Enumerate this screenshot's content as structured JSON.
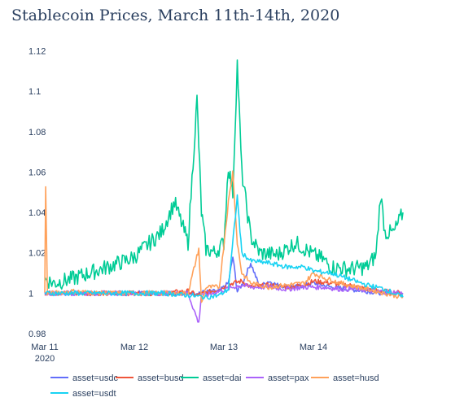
{
  "chart_data": {
    "type": "line",
    "title": "Stablecoin Prices, March 11th-14th, 2020",
    "xlabel": "",
    "ylabel": "",
    "x_ticks": [
      "Mar 11",
      "Mar 12",
      "Mar 13",
      "Mar 14"
    ],
    "x_sub_tick": "2020",
    "y_ticks": [
      "0.98",
      "1",
      "1.02",
      "1.04",
      "1.06",
      "1.08",
      "1.1",
      "1.12"
    ],
    "xlim": [
      0,
      4
    ],
    "ylim": [
      0.978,
      1.123
    ],
    "grid": false,
    "legend_position": "bottom",
    "x_unit": "days since Mar 11 2020",
    "series": [
      {
        "name": "asset=usdc",
        "color": "#636efa",
        "x": [
          0,
          0.3,
          0.6,
          1.0,
          1.3,
          1.6,
          1.95,
          2.05,
          2.1,
          2.15,
          2.2,
          2.3,
          2.4,
          2.5,
          2.6,
          2.8,
          3.0,
          3.2,
          3.4,
          3.6,
          3.8,
          4.0
        ],
        "y": [
          1.0,
          1.0,
          1.0,
          1.0,
          1.0,
          1.0,
          1.001,
          1.005,
          1.018,
          1.001,
          1.004,
          1.015,
          1.003,
          1.006,
          1.004,
          1.003,
          1.005,
          1.003,
          1.002,
          1.001,
          1.0,
          1.0
        ]
      },
      {
        "name": "asset=busd",
        "color": "#ef553b",
        "x": [
          0,
          0.3,
          0.6,
          1.0,
          1.3,
          1.6,
          1.7,
          1.95,
          2.1,
          2.2,
          2.3,
          2.5,
          2.7,
          2.9,
          3.0,
          3.2,
          3.4,
          3.6,
          3.8,
          4.0
        ],
        "y": [
          1.0,
          1.0,
          1.0,
          1.0,
          1.0,
          1.001,
          0.999,
          1.002,
          1.005,
          1.006,
          1.003,
          1.004,
          1.003,
          1.004,
          1.006,
          1.005,
          1.004,
          1.002,
          1.001,
          1.0
        ]
      },
      {
        "name": "asset=dai",
        "color": "#00cc96",
        "x": [
          0,
          0.1,
          0.3,
          0.5,
          0.7,
          0.9,
          1.0,
          1.1,
          1.3,
          1.45,
          1.6,
          1.7,
          1.75,
          1.8,
          1.9,
          2.0,
          2.05,
          2.1,
          2.15,
          2.2,
          2.3,
          2.4,
          2.6,
          2.8,
          3.0,
          3.1,
          3.2,
          3.4,
          3.6,
          3.7,
          3.75,
          3.8,
          3.9,
          4.0
        ],
        "y": [
          1.007,
          1.005,
          1.007,
          1.01,
          1.013,
          1.016,
          1.018,
          1.022,
          1.03,
          1.045,
          1.025,
          1.096,
          1.04,
          1.022,
          1.02,
          1.025,
          1.063,
          1.05,
          1.114,
          1.06,
          1.028,
          1.02,
          1.019,
          1.025,
          1.019,
          1.017,
          1.013,
          1.012,
          1.013,
          1.019,
          1.049,
          1.03,
          1.03,
          1.04
        ]
      },
      {
        "name": "asset=pax",
        "color": "#ab63fa",
        "x": [
          0,
          0.3,
          0.6,
          1.0,
          1.3,
          1.6,
          1.72,
          1.75,
          1.8,
          1.95,
          2.1,
          2.2,
          2.3,
          2.5,
          2.7,
          2.9,
          3.1,
          3.3,
          3.5,
          3.7,
          4.0
        ],
        "y": [
          1.0,
          1.0,
          1.0,
          1.0,
          1.0,
          1.0,
          0.985,
          1.0,
          0.999,
          1.001,
          1.003,
          1.004,
          1.003,
          1.003,
          1.002,
          1.003,
          1.003,
          1.002,
          1.002,
          1.001,
          1.0
        ]
      },
      {
        "name": "asset=husd",
        "color": "#ffa15a",
        "x": [
          0,
          0.01,
          0.03,
          0.1,
          0.3,
          0.6,
          1.0,
          1.3,
          1.6,
          1.72,
          1.75,
          1.8,
          1.95,
          2.05,
          2.1,
          2.15,
          2.2,
          2.3,
          2.5,
          2.7,
          2.9,
          3.0,
          3.1,
          3.3,
          3.5,
          3.7,
          4.0
        ],
        "y": [
          1.0,
          1.052,
          1.0,
          1.0,
          1.001,
          1.0,
          1.0,
          1.0,
          1.0,
          1.022,
          0.995,
          1.003,
          1.003,
          1.045,
          1.06,
          1.025,
          1.01,
          1.005,
          1.003,
          1.004,
          1.005,
          1.01,
          1.008,
          1.005,
          1.003,
          1.001,
          0.998
        ]
      },
      {
        "name": "asset=usdt",
        "color": "#19d3f3",
        "x": [
          0,
          0.3,
          0.6,
          1.0,
          1.3,
          1.6,
          1.8,
          1.95,
          2.05,
          2.15,
          2.2,
          2.3,
          2.5,
          2.7,
          2.9,
          3.0,
          3.2,
          3.4,
          3.6,
          3.8,
          4.0
        ],
        "y": [
          1.0,
          1.0,
          1.0,
          1.0,
          1.0,
          0.999,
          0.998,
          0.999,
          1.002,
          1.048,
          1.02,
          1.016,
          1.015,
          1.013,
          1.013,
          1.011,
          1.01,
          1.007,
          1.004,
          1.002,
          0.998
        ]
      }
    ]
  }
}
